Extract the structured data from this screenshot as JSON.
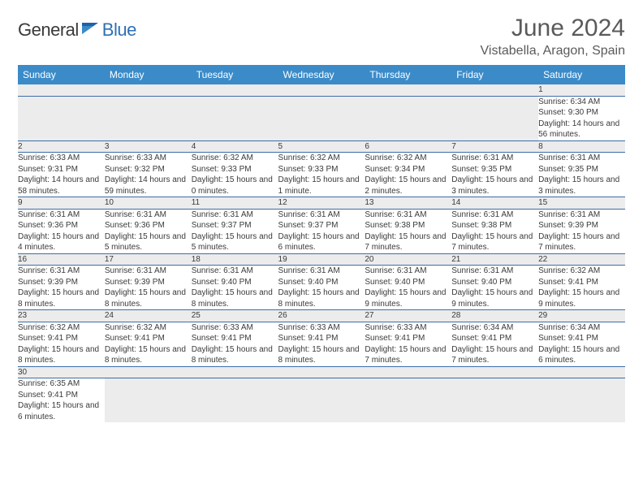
{
  "brand": {
    "part1": "General",
    "part2": "Blue"
  },
  "title": "June 2024",
  "location": "Vistabella, Aragon, Spain",
  "colors": {
    "header_bg": "#3b8bc9",
    "header_text": "#ffffff",
    "daynum_bg": "#ececec",
    "cell_bg": "#ffffff",
    "rule": "#3b6fa8",
    "title_text": "#5a5a5a",
    "body_text": "#3a3a3a",
    "logo_gray": "#3a3a3a",
    "logo_blue": "#2f6fb5"
  },
  "dayHeaders": [
    "Sunday",
    "Monday",
    "Tuesday",
    "Wednesday",
    "Thursday",
    "Friday",
    "Saturday"
  ],
  "weeks": [
    [
      null,
      null,
      null,
      null,
      null,
      null,
      {
        "n": "1",
        "sr": "Sunrise: 6:34 AM",
        "ss": "Sunset: 9:30 PM",
        "dl": "Daylight: 14 hours and 56 minutes."
      }
    ],
    [
      {
        "n": "2",
        "sr": "Sunrise: 6:33 AM",
        "ss": "Sunset: 9:31 PM",
        "dl": "Daylight: 14 hours and 58 minutes."
      },
      {
        "n": "3",
        "sr": "Sunrise: 6:33 AM",
        "ss": "Sunset: 9:32 PM",
        "dl": "Daylight: 14 hours and 59 minutes."
      },
      {
        "n": "4",
        "sr": "Sunrise: 6:32 AM",
        "ss": "Sunset: 9:33 PM",
        "dl": "Daylight: 15 hours and 0 minutes."
      },
      {
        "n": "5",
        "sr": "Sunrise: 6:32 AM",
        "ss": "Sunset: 9:33 PM",
        "dl": "Daylight: 15 hours and 1 minute."
      },
      {
        "n": "6",
        "sr": "Sunrise: 6:32 AM",
        "ss": "Sunset: 9:34 PM",
        "dl": "Daylight: 15 hours and 2 minutes."
      },
      {
        "n": "7",
        "sr": "Sunrise: 6:31 AM",
        "ss": "Sunset: 9:35 PM",
        "dl": "Daylight: 15 hours and 3 minutes."
      },
      {
        "n": "8",
        "sr": "Sunrise: 6:31 AM",
        "ss": "Sunset: 9:35 PM",
        "dl": "Daylight: 15 hours and 3 minutes."
      }
    ],
    [
      {
        "n": "9",
        "sr": "Sunrise: 6:31 AM",
        "ss": "Sunset: 9:36 PM",
        "dl": "Daylight: 15 hours and 4 minutes."
      },
      {
        "n": "10",
        "sr": "Sunrise: 6:31 AM",
        "ss": "Sunset: 9:36 PM",
        "dl": "Daylight: 15 hours and 5 minutes."
      },
      {
        "n": "11",
        "sr": "Sunrise: 6:31 AM",
        "ss": "Sunset: 9:37 PM",
        "dl": "Daylight: 15 hours and 5 minutes."
      },
      {
        "n": "12",
        "sr": "Sunrise: 6:31 AM",
        "ss": "Sunset: 9:37 PM",
        "dl": "Daylight: 15 hours and 6 minutes."
      },
      {
        "n": "13",
        "sr": "Sunrise: 6:31 AM",
        "ss": "Sunset: 9:38 PM",
        "dl": "Daylight: 15 hours and 7 minutes."
      },
      {
        "n": "14",
        "sr": "Sunrise: 6:31 AM",
        "ss": "Sunset: 9:38 PM",
        "dl": "Daylight: 15 hours and 7 minutes."
      },
      {
        "n": "15",
        "sr": "Sunrise: 6:31 AM",
        "ss": "Sunset: 9:39 PM",
        "dl": "Daylight: 15 hours and 7 minutes."
      }
    ],
    [
      {
        "n": "16",
        "sr": "Sunrise: 6:31 AM",
        "ss": "Sunset: 9:39 PM",
        "dl": "Daylight: 15 hours and 8 minutes."
      },
      {
        "n": "17",
        "sr": "Sunrise: 6:31 AM",
        "ss": "Sunset: 9:39 PM",
        "dl": "Daylight: 15 hours and 8 minutes."
      },
      {
        "n": "18",
        "sr": "Sunrise: 6:31 AM",
        "ss": "Sunset: 9:40 PM",
        "dl": "Daylight: 15 hours and 8 minutes."
      },
      {
        "n": "19",
        "sr": "Sunrise: 6:31 AM",
        "ss": "Sunset: 9:40 PM",
        "dl": "Daylight: 15 hours and 8 minutes."
      },
      {
        "n": "20",
        "sr": "Sunrise: 6:31 AM",
        "ss": "Sunset: 9:40 PM",
        "dl": "Daylight: 15 hours and 9 minutes."
      },
      {
        "n": "21",
        "sr": "Sunrise: 6:31 AM",
        "ss": "Sunset: 9:40 PM",
        "dl": "Daylight: 15 hours and 9 minutes."
      },
      {
        "n": "22",
        "sr": "Sunrise: 6:32 AM",
        "ss": "Sunset: 9:41 PM",
        "dl": "Daylight: 15 hours and 9 minutes."
      }
    ],
    [
      {
        "n": "23",
        "sr": "Sunrise: 6:32 AM",
        "ss": "Sunset: 9:41 PM",
        "dl": "Daylight: 15 hours and 8 minutes."
      },
      {
        "n": "24",
        "sr": "Sunrise: 6:32 AM",
        "ss": "Sunset: 9:41 PM",
        "dl": "Daylight: 15 hours and 8 minutes."
      },
      {
        "n": "25",
        "sr": "Sunrise: 6:33 AM",
        "ss": "Sunset: 9:41 PM",
        "dl": "Daylight: 15 hours and 8 minutes."
      },
      {
        "n": "26",
        "sr": "Sunrise: 6:33 AM",
        "ss": "Sunset: 9:41 PM",
        "dl": "Daylight: 15 hours and 8 minutes."
      },
      {
        "n": "27",
        "sr": "Sunrise: 6:33 AM",
        "ss": "Sunset: 9:41 PM",
        "dl": "Daylight: 15 hours and 7 minutes."
      },
      {
        "n": "28",
        "sr": "Sunrise: 6:34 AM",
        "ss": "Sunset: 9:41 PM",
        "dl": "Daylight: 15 hours and 7 minutes."
      },
      {
        "n": "29",
        "sr": "Sunrise: 6:34 AM",
        "ss": "Sunset: 9:41 PM",
        "dl": "Daylight: 15 hours and 6 minutes."
      }
    ],
    [
      {
        "n": "30",
        "sr": "Sunrise: 6:35 AM",
        "ss": "Sunset: 9:41 PM",
        "dl": "Daylight: 15 hours and 6 minutes."
      },
      null,
      null,
      null,
      null,
      null,
      null
    ]
  ]
}
